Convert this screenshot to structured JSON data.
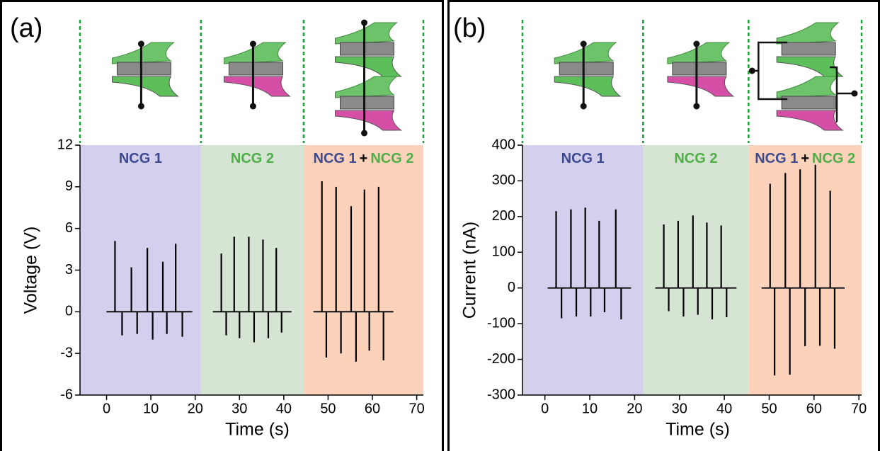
{
  "chart_data": [
    {
      "type": "stem",
      "panel_label": "(a)",
      "xlabel": "Time (s)",
      "ylabel": "Voltage (V)",
      "xlim": [
        -6,
        71.5
      ],
      "ylim": [
        -6,
        12
      ],
      "xticks": [
        0,
        10,
        20,
        30,
        40,
        50,
        60,
        70
      ],
      "yticks": [
        -6,
        -3,
        0,
        3,
        6,
        9,
        12
      ],
      "regions": [
        {
          "range": [
            -6,
            21.3
          ],
          "color": "#d3cfec",
          "label_parts": [
            {
              "text": "NCG 1",
              "color": "#3d4a8f"
            }
          ]
        },
        {
          "range": [
            21.3,
            44.5
          ],
          "color": "#d6e4d3",
          "label_parts": [
            {
              "text": "NCG 2",
              "color": "#4fae48"
            }
          ]
        },
        {
          "range": [
            44.5,
            71.5
          ],
          "color": "#fdd2bb",
          "label_parts": [
            {
              "text": "NCG 1",
              "color": "#3d4a8f"
            },
            {
              "text": "+",
              "color": "#000000"
            },
            {
              "text": "NCG 2",
              "color": "#4fae48"
            }
          ]
        }
      ],
      "series": [
        {
          "color": "#000000",
          "x": [
            1.9,
            3.5,
            5.6,
            6.9,
            9.2,
            10.4,
            12.7,
            13.6,
            15.6,
            17.1
          ],
          "values": [
            5.1,
            -1.7,
            3.2,
            -1.6,
            4.6,
            -2.0,
            3.6,
            -1.6,
            4.9,
            -1.8
          ]
        },
        {
          "color": "#000000",
          "x": [
            25.9,
            27.0,
            28.8,
            30.0,
            32.1,
            33.3,
            35.3,
            36.5,
            38.3,
            39.5
          ],
          "values": [
            4.2,
            -1.7,
            5.4,
            -1.9,
            5.4,
            -2.2,
            5.2,
            -1.9,
            4.6,
            -1.5
          ]
        },
        {
          "color": "#000000",
          "x": [
            48.6,
            49.6,
            51.8,
            52.9,
            55.2,
            56.3,
            58.2,
            59.3,
            61.4,
            62.5
          ],
          "values": [
            9.4,
            -3.3,
            9.0,
            -3.0,
            7.6,
            -3.6,
            8.8,
            -2.8,
            9.0,
            -3.5
          ]
        }
      ]
    },
    {
      "type": "stem",
      "panel_label": "(b)",
      "xlabel": "Time (s)",
      "ylabel": "Current (nA)",
      "xlim": [
        -5,
        70.6
      ],
      "ylim": [
        -300,
        400
      ],
      "xticks": [
        0,
        10,
        20,
        30,
        40,
        50,
        60,
        70
      ],
      "yticks": [
        -300,
        -200,
        -100,
        0,
        100,
        200,
        300,
        400
      ],
      "regions": [
        {
          "range": [
            -5,
            21.9
          ],
          "color": "#d3cfec",
          "label_parts": [
            {
              "text": "NCG 1",
              "color": "#3d4a8f"
            }
          ]
        },
        {
          "range": [
            21.9,
            45.4
          ],
          "color": "#d6e4d3",
          "label_parts": [
            {
              "text": "NCG 2",
              "color": "#4fae48"
            }
          ]
        },
        {
          "range": [
            45.4,
            70.6
          ],
          "color": "#fdd2bb",
          "label_parts": [
            {
              "text": "NCG 1",
              "color": "#3d4a8f"
            },
            {
              "text": "+",
              "color": "#000000"
            },
            {
              "text": "NCG 2",
              "color": "#4fae48"
            }
          ]
        }
      ],
      "series": [
        {
          "color": "#000000",
          "x": [
            2.5,
            3.7,
            5.8,
            7.0,
            9.0,
            10.2,
            12.1,
            13.3,
            15.8,
            17.0
          ],
          "values": [
            215,
            -85,
            220,
            -80,
            225,
            -80,
            188,
            -68,
            220,
            -88
          ]
        },
        {
          "color": "#000000",
          "x": [
            26.5,
            27.6,
            29.7,
            30.9,
            33.0,
            34.1,
            36.1,
            37.3,
            39.3,
            40.5
          ],
          "values": [
            178,
            -65,
            188,
            -80,
            203,
            -75,
            183,
            -88,
            175,
            -82
          ]
        },
        {
          "color": "#000000",
          "x": [
            50.2,
            51.2,
            53.6,
            54.6,
            56.9,
            58.0,
            60.3,
            61.3,
            63.6,
            64.6
          ],
          "values": [
            292,
            -245,
            322,
            -243,
            332,
            -163,
            345,
            -162,
            272,
            -170
          ]
        }
      ]
    }
  ]
}
